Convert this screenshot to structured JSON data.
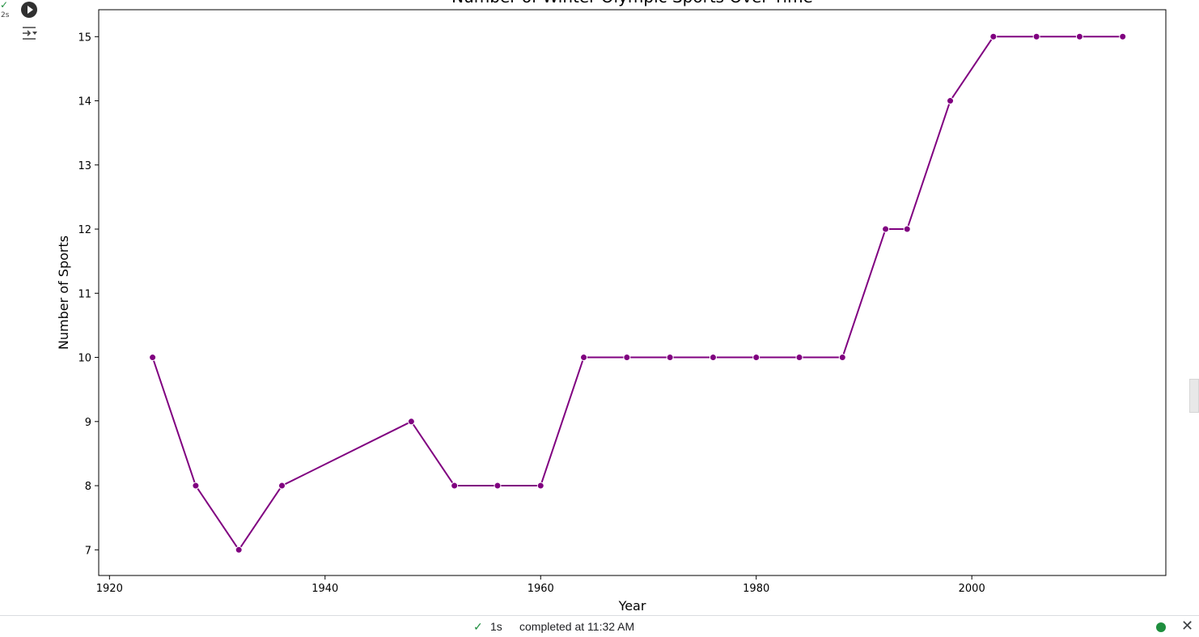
{
  "cell": {
    "exec_status": "✓",
    "exec_time": "2s",
    "run_icon": "play-circle-icon",
    "output_icon": "output-toggle-icon"
  },
  "status_bar": {
    "check_icon": "check-icon",
    "duration": "1s",
    "completed_text": "completed at 11:32 AM",
    "connection_status_color": "#1e8e3e"
  },
  "chart_data": {
    "type": "line",
    "title": "Number of Winter Olympic Sports Over Time",
    "xlabel": "Year",
    "ylabel": "Number of Sports",
    "color": "#800080",
    "marker": "circle",
    "grid": false,
    "xlim": [
      1919,
      2018
    ],
    "ylim": [
      6.6,
      15.42
    ],
    "x_ticks": [
      1920,
      1940,
      1960,
      1980,
      2000
    ],
    "y_ticks": [
      7,
      8,
      9,
      10,
      11,
      12,
      13,
      14,
      15
    ],
    "x": [
      1924,
      1928,
      1932,
      1936,
      1948,
      1952,
      1956,
      1960,
      1964,
      1968,
      1972,
      1976,
      1980,
      1984,
      1988,
      1992,
      1994,
      1998,
      2002,
      2006,
      2010,
      2014
    ],
    "y": [
      10,
      8,
      7,
      8,
      9,
      8,
      8,
      8,
      10,
      10,
      10,
      10,
      10,
      10,
      10,
      12,
      12,
      14,
      15,
      15,
      15,
      15
    ]
  }
}
